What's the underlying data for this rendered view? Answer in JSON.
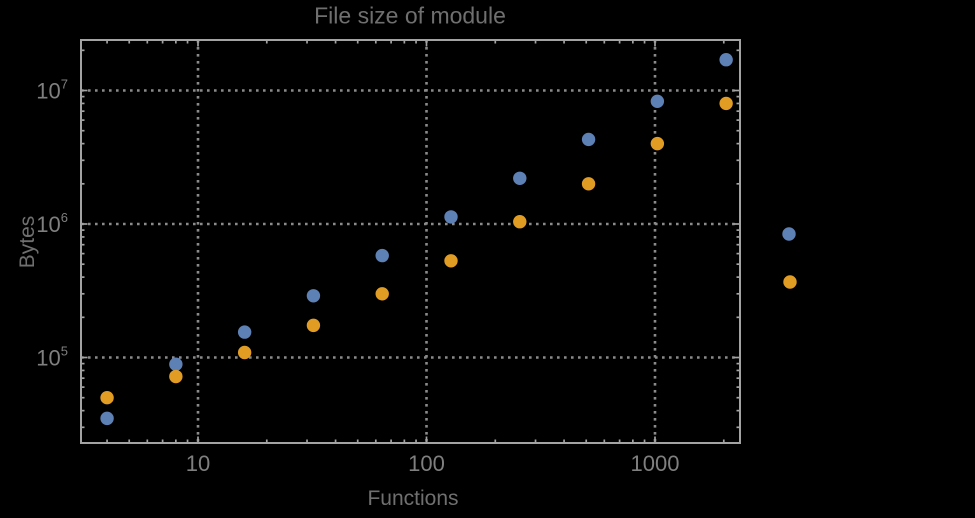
{
  "page": {
    "background": "#000000"
  },
  "styles": {
    "frame_color": "#A3A3A3",
    "grid_color": "#8A8A8A",
    "tick_label_color": "#7F7F7F",
    "title_color": "#6F6F6F",
    "axis_label_color": "#6F6F6F"
  },
  "chart_data": {
    "type": "scatter",
    "title": "File size of module",
    "xlabel": "Functions",
    "ylabel": "Bytes",
    "xscale": "log",
    "yscale": "log",
    "xlim": [
      3.1,
      2350
    ],
    "ylim": [
      23000,
      23900000
    ],
    "grid": {
      "style": "dotted",
      "major_x": [
        10,
        100,
        1000
      ],
      "major_y": [
        100000,
        1000000,
        10000000
      ]
    },
    "x_tick_labels": [
      "10",
      "100",
      "1000"
    ],
    "y_tick_labels": [
      {
        "base": "10",
        "exponent": "5"
      },
      {
        "base": "10",
        "exponent": "6"
      },
      {
        "base": "10",
        "exponent": "7"
      }
    ],
    "x": [
      4,
      8,
      16,
      32,
      64,
      128,
      256,
      512,
      1024,
      2048
    ],
    "series": [
      {
        "name": "blue",
        "color": "#5E81B5",
        "values": [
          35000,
          89000,
          155000,
          290000,
          580000,
          1130000,
          2200000,
          4300000,
          8300000,
          17000000
        ]
      },
      {
        "name": "orange",
        "color": "#E19C24",
        "values": [
          50000,
          72000,
          109000,
          174000,
          300000,
          530000,
          1040000,
          2000000,
          4000000,
          8000000
        ]
      }
    ],
    "legend": {
      "position": "outside-right",
      "labels_visible": false
    }
  }
}
